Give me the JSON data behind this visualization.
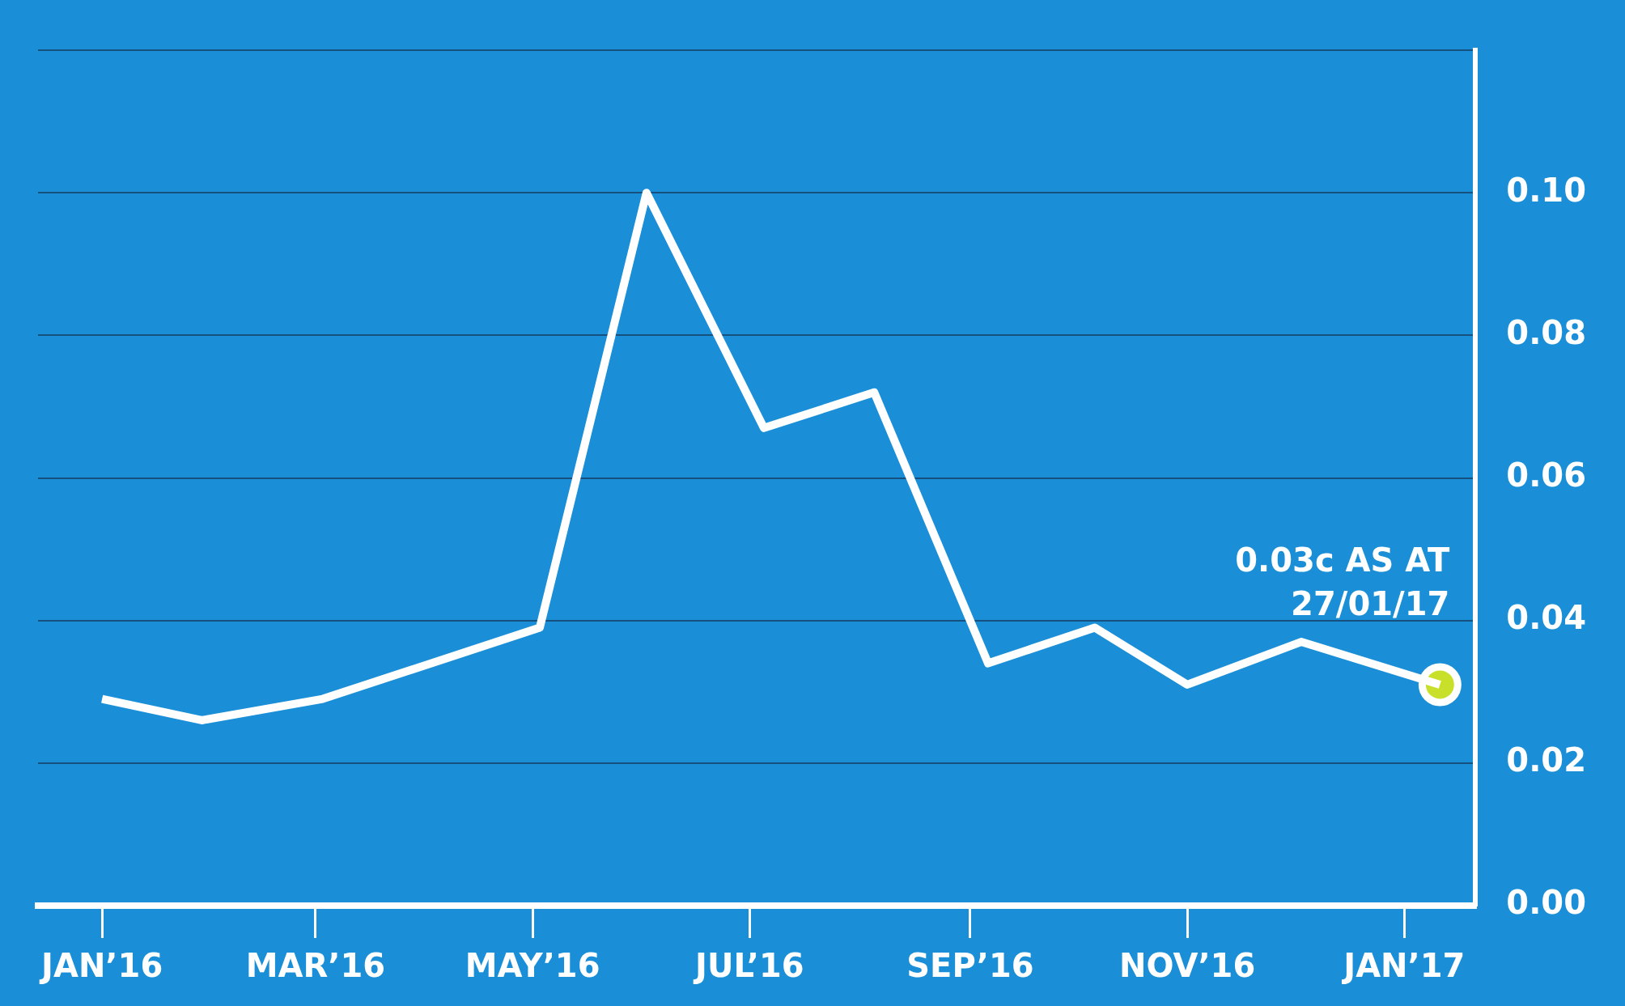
{
  "chart_data": {
    "type": "line",
    "x": [
      "2016-01-01",
      "2016-01-29",
      "2016-03-03",
      "2016-05-03",
      "2016-06-02",
      "2016-07-05",
      "2016-08-05",
      "2016-09-06",
      "2016-10-06",
      "2016-11-01",
      "2016-12-03",
      "2017-01-11"
    ],
    "series": [
      {
        "color": "#ffffff",
        "values": [
          0.029,
          0.026,
          0.029,
          0.039,
          0.1,
          0.067,
          0.072,
          0.034,
          0.039,
          0.031,
          0.037,
          0.031
        ]
      },
      {
        "type": "scatter",
        "color": "#c8e02a",
        "x": [
          "2017-01-11"
        ],
        "values": [
          0.031
        ]
      }
    ],
    "xlim": [
      "2015-12-14",
      "2017-01-21"
    ],
    "xticks": [
      {
        "value": "2016-01-01",
        "label": "JAN’16"
      },
      {
        "value": "2016-03-01",
        "label": "MAR’16"
      },
      {
        "value": "2016-05-01",
        "label": "MAY’16"
      },
      {
        "value": "2016-07-01",
        "label": "JUL’16"
      },
      {
        "value": "2016-09-01",
        "label": "SEP’16"
      },
      {
        "value": "2016-11-01",
        "label": "NOV’16"
      },
      {
        "value": "2017-01-01",
        "label": "JAN’17"
      }
    ],
    "ylim": [
      0,
      0.12
    ],
    "yticks": [
      {
        "value": 0,
        "label": "0.00"
      },
      {
        "value": 0.02,
        "label": "0.02"
      },
      {
        "value": 0.04,
        "label": "0.04"
      },
      {
        "value": 0.06,
        "label": "0.06"
      },
      {
        "value": 0.08,
        "label": "0.08"
      },
      {
        "value": 0.1,
        "label": "0.10"
      },
      {
        "value": 0.12,
        "label": null
      }
    ],
    "grid": "y",
    "legend": false,
    "annotations": [
      {
        "text": "0.03c AS AT\n27/01/17",
        "x": "2017-01-11",
        "y": 0.031
      }
    ]
  }
}
